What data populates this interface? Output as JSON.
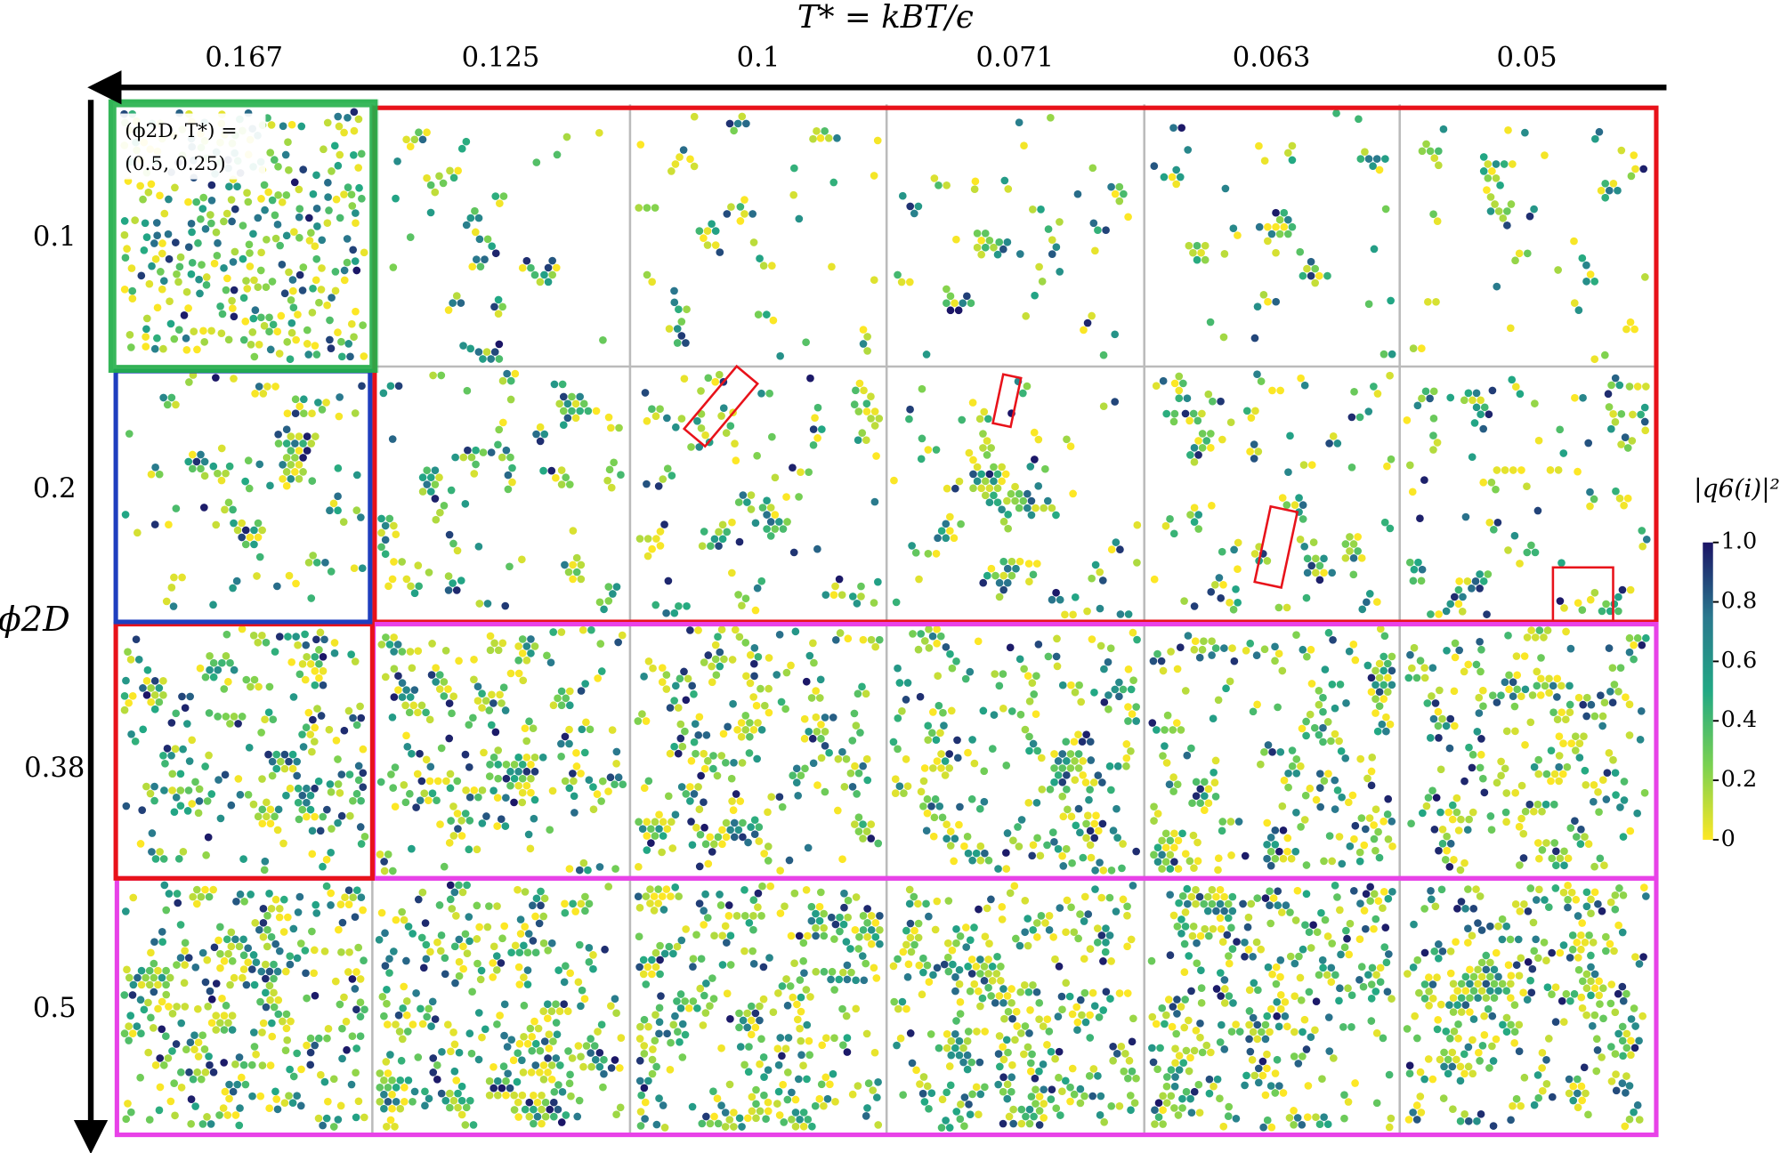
{
  "x_axis": {
    "title": "T* = kBT/ϵ",
    "labels": [
      "0.167",
      "0.125",
      "0.1",
      "0.071",
      "0.063",
      "0.05"
    ]
  },
  "y_axis": {
    "title": "ϕ2D",
    "labels": [
      "0.1",
      "0.2",
      "0.38",
      "0.5"
    ]
  },
  "annotation": {
    "lines": [
      "(ϕ2D, T*) =",
      "(0.5, 0.25)"
    ]
  },
  "colorbar": {
    "title": "|q6(i)|²",
    "ticks": [
      {
        "value": 1,
        "label": "1.0"
      },
      0.8,
      0.6,
      0.4,
      0.2,
      0
    ]
  }
}
